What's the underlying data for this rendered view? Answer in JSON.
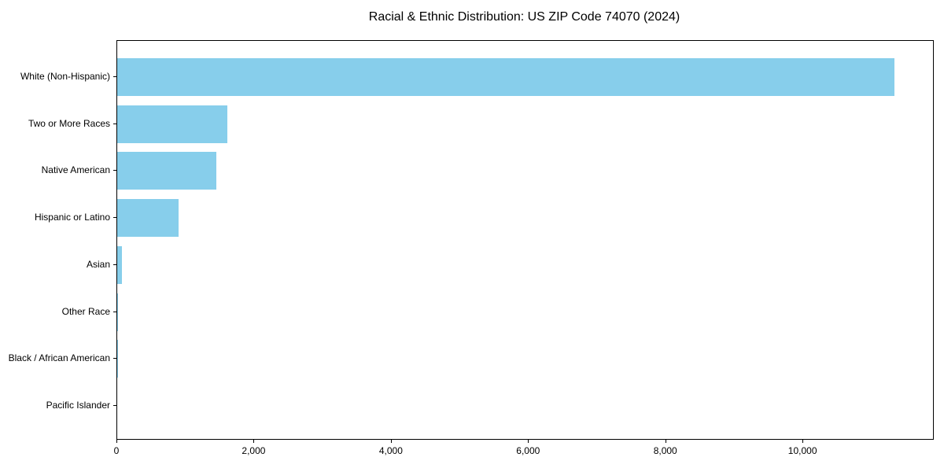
{
  "chart_data": {
    "type": "bar",
    "orientation": "horizontal",
    "title": "Racial & Ethnic Distribution: US ZIP Code 74070 (2024)",
    "categories": [
      "White (Non-Hispanic)",
      "Two or More Races",
      "Native American",
      "Hispanic or Latino",
      "Asian",
      "Other Race",
      "Black / African American",
      "Pacific Islander"
    ],
    "values": [
      11330,
      1610,
      1450,
      890,
      65,
      12,
      6,
      0
    ],
    "xlabel": "",
    "ylabel": "",
    "xlim": [
      0,
      11890
    ],
    "xticks": [
      0,
      2000,
      4000,
      6000,
      8000,
      10000
    ],
    "xtick_labels": [
      "0",
      "2,000",
      "4,000",
      "6,000",
      "8,000",
      "10,000"
    ],
    "bar_color": "#87CEEB",
    "text_color": "#000000",
    "grid": false,
    "legend": null
  }
}
